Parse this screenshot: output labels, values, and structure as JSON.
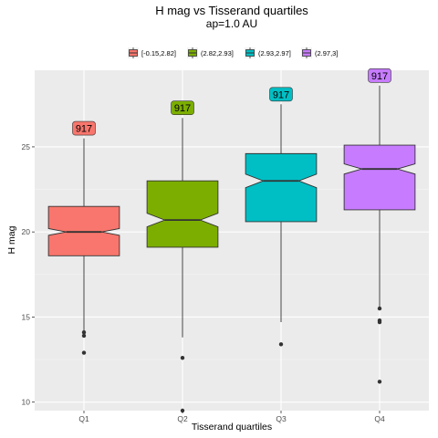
{
  "chart_data": {
    "type": "boxplot",
    "title": "H mag vs Tisserand quartiles",
    "subtitle": "ap=1.0 AU",
    "xlabel": "Tisserand quartiles",
    "ylabel": "H mag",
    "categories": [
      "Q1",
      "Q2",
      "Q3",
      "Q4"
    ],
    "ylim": [
      9.5,
      29.5
    ],
    "yticks": [
      10,
      15,
      20,
      25
    ],
    "grid": true,
    "notched": true,
    "legend_position": "top",
    "legend": [
      {
        "label": "[-0.15,2.82]",
        "color": "#F8766D"
      },
      {
        "label": "(2.82,2.93]",
        "color": "#7CAE00"
      },
      {
        "label": "(2.93,2.97]",
        "color": "#00BFC4"
      },
      {
        "label": "(2.97,3]",
        "color": "#C77CFF"
      }
    ],
    "boxes": [
      {
        "category": "Q1",
        "q1": 18.6,
        "median": 20.0,
        "q3": 21.5,
        "notch_low": 19.8,
        "notch_high": 20.2,
        "whisker_low": 14.2,
        "whisker_high": 25.5,
        "outliers": [
          25.9,
          14.1,
          13.9,
          12.9
        ],
        "count_label": "917",
        "color": "#F8766D"
      },
      {
        "category": "Q2",
        "q1": 19.1,
        "median": 20.7,
        "q3": 23.0,
        "notch_low": 20.3,
        "notch_high": 21.1,
        "whisker_low": 13.8,
        "whisker_high": 26.7,
        "outliers": [
          12.6,
          9.5
        ],
        "count_label": "917",
        "color": "#7CAE00"
      },
      {
        "category": "Q3",
        "q1": 20.6,
        "median": 23.0,
        "q3": 24.6,
        "notch_low": 22.6,
        "notch_high": 23.4,
        "whisker_low": 14.7,
        "whisker_high": 27.5,
        "outliers": [
          13.4
        ],
        "count_label": "917",
        "color": "#00BFC4"
      },
      {
        "category": "Q4",
        "q1": 21.3,
        "median": 23.7,
        "q3": 25.1,
        "notch_low": 23.4,
        "notch_high": 24.0,
        "whisker_low": 15.6,
        "whisker_high": 28.6,
        "outliers": [
          15.5,
          14.8,
          14.7,
          11.2
        ],
        "count_label": "917",
        "color": "#C77CFF"
      }
    ]
  }
}
